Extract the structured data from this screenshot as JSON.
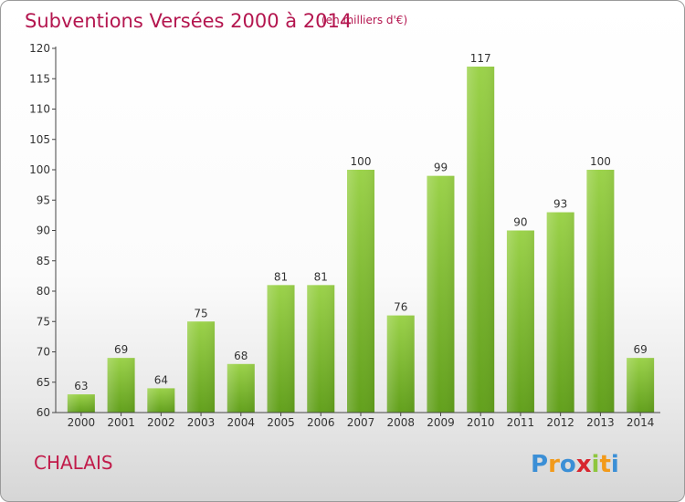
{
  "chart_data": {
    "type": "bar",
    "title": "Subventions Versées 2000 à 2014",
    "subtitle": "(en milliers d'€)",
    "categories": [
      "2000",
      "2001",
      "2002",
      "2003",
      "2004",
      "2005",
      "2006",
      "2007",
      "2008",
      "2009",
      "2010",
      "2011",
      "2012",
      "2013",
      "2014"
    ],
    "values": [
      63,
      69,
      64,
      75,
      68,
      81,
      81,
      100,
      76,
      99,
      117,
      90,
      93,
      100,
      69
    ],
    "ylim": [
      60,
      120
    ],
    "yticks": [
      60,
      65,
      70,
      75,
      80,
      85,
      90,
      95,
      100,
      105,
      110,
      115,
      120
    ],
    "grid": false,
    "xlabel": "",
    "ylabel": ""
  },
  "footer": {
    "commune": "CHALAIS",
    "logo_text": "Proxiti"
  },
  "colors": {
    "title": "#b4164f",
    "bar_light": "#9bd24a",
    "bar_dark": "#62a01c",
    "axis": "#444444"
  }
}
